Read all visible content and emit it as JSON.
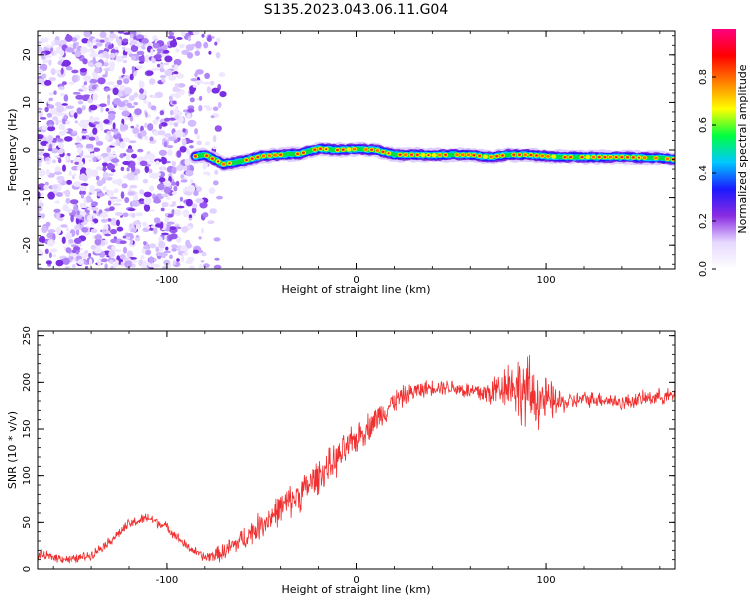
{
  "title": "S135.2023.043.06.11.G04",
  "colors": {
    "track_low": "#7b2be0",
    "track_high": "#e8232a",
    "snr_line": "#f03030",
    "axis": "#000000"
  },
  "chart_data": [
    {
      "type": "heatmap",
      "xlabel": "Height of straight line (km)",
      "ylabel": "Frequency (Hz)",
      "xlim": [
        -168,
        168
      ],
      "ylim": [
        -25,
        25
      ],
      "x_ticks": [
        -100,
        0,
        100
      ],
      "y_ticks": [
        -20,
        -10,
        0,
        10,
        20
      ],
      "noise_region_x": [
        -168,
        -70
      ],
      "track": {
        "x": [
          -85,
          -80,
          -70,
          -60,
          -50,
          -40,
          -30,
          -20,
          -10,
          0,
          10,
          20,
          30,
          40,
          50,
          60,
          70,
          80,
          90,
          100,
          110,
          120,
          130,
          140,
          150,
          160,
          168
        ],
        "freq": [
          -1.3,
          -1.0,
          -3.0,
          -2.3,
          -1.3,
          -1.0,
          -0.8,
          0.3,
          0.0,
          0.2,
          0.0,
          -1.0,
          -1.0,
          -1.1,
          -1.0,
          -1.0,
          -1.5,
          -1.0,
          -1.0,
          -1.3,
          -1.5,
          -1.5,
          -1.5,
          -1.5,
          -1.6,
          -1.7,
          -2.0
        ]
      },
      "colorbar": {
        "label": "Normalized spectral amplitude",
        "range": [
          0,
          1
        ],
        "ticks": [
          "0.0",
          "0.2",
          "0.4",
          "0.6",
          "0.8"
        ],
        "tick_values": [
          0,
          0.2,
          0.4,
          0.6,
          0.8
        ],
        "stops": [
          "#ffffff",
          "#e6d8ff",
          "#8a2be2",
          "#1a1aff",
          "#00c8ff",
          "#00ff40",
          "#ffff00",
          "#ff8000",
          "#ff0000",
          "#ff0080"
        ]
      }
    },
    {
      "type": "line",
      "xlabel": "Height of straight line (km)",
      "ylabel": "SNR (10 * v/v)",
      "xlim": [
        -168,
        168
      ],
      "ylim": [
        0,
        255
      ],
      "x_ticks": [
        -100,
        0,
        100
      ],
      "y_ticks": [
        0,
        50,
        100,
        150,
        200,
        250
      ],
      "envelope": {
        "x": [
          -168,
          -150,
          -140,
          -130,
          -120,
          -110,
          -100,
          -90,
          -80,
          -70,
          -60,
          -50,
          -40,
          -30,
          -20,
          -10,
          0,
          10,
          20,
          30,
          40,
          50,
          60,
          70,
          80,
          90,
          100,
          110,
          120,
          130,
          140,
          150,
          160,
          168
        ],
        "mean": [
          15,
          10,
          15,
          30,
          48,
          55,
          45,
          25,
          12,
          18,
          32,
          48,
          65,
          80,
          100,
          118,
          140,
          160,
          180,
          190,
          195,
          195,
          190,
          188,
          200,
          188,
          180,
          178,
          182,
          182,
          178,
          182,
          185,
          185
        ],
        "spread": [
          6,
          6,
          6,
          6,
          7,
          7,
          6,
          6,
          6,
          12,
          15,
          18,
          20,
          22,
          22,
          22,
          20,
          18,
          15,
          12,
          10,
          10,
          12,
          18,
          30,
          50,
          30,
          12,
          10,
          10,
          10,
          10,
          10,
          10
        ]
      }
    }
  ]
}
